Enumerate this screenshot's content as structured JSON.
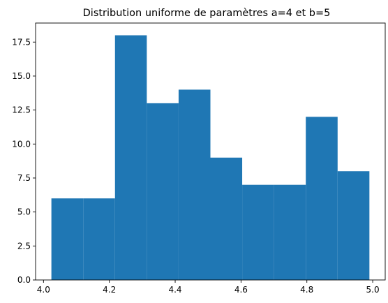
{
  "chart_data": {
    "type": "bar",
    "title": "Distribution uniforme de paramètres a=4 et b=5",
    "xlabel": "",
    "ylabel": "",
    "bin_edges": [
      4.024,
      4.1206,
      4.2172,
      4.3138,
      4.4104,
      4.507,
      4.6036,
      4.7002,
      4.7968,
      4.8934,
      4.99
    ],
    "counts": [
      6,
      6,
      18,
      13,
      14,
      9,
      7,
      7,
      12,
      8
    ],
    "xlim": [
      3.976,
      5.038
    ],
    "ylim": [
      0,
      18.9
    ],
    "xticks": [
      4.0,
      4.2,
      4.4,
      4.6,
      4.8,
      5.0
    ],
    "xtick_labels": [
      "4.0",
      "4.2",
      "4.4",
      "4.6",
      "4.8",
      "5.0"
    ],
    "yticks": [
      0,
      2.5,
      5,
      7.5,
      10,
      12.5,
      15,
      17.5
    ],
    "ytick_labels": [
      "0.0",
      "2.5",
      "5.0",
      "7.5",
      "10.0",
      "12.5",
      "15.0",
      "17.5"
    ],
    "bar_color": "#1f77b4",
    "grid": false,
    "legend": "none"
  }
}
